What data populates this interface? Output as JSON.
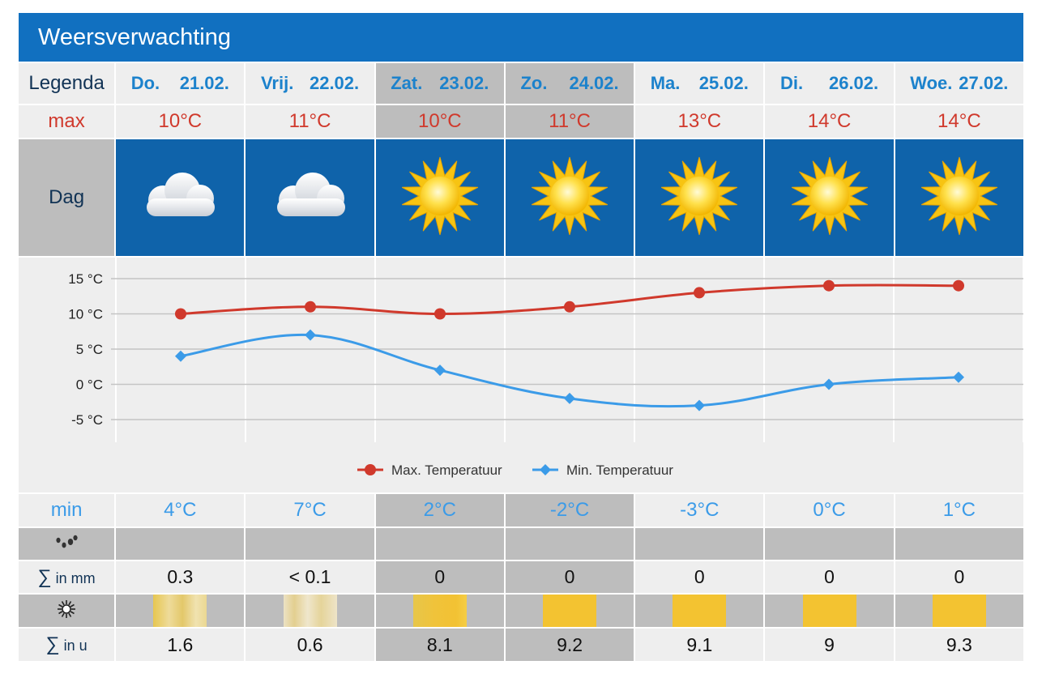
{
  "title": "Weersverwachting",
  "legend_labels": {
    "legenda": "Legenda",
    "max": "max",
    "dag": "Dag",
    "min": "min",
    "rain_sum_symbol": "∑",
    "rain_sum_unit": " in mm",
    "sun_sum_symbol": "∑",
    "sun_sum_unit": " in u"
  },
  "days": [
    {
      "name": "Do.",
      "date": "21.02.",
      "max": "10°C",
      "min": "4°C",
      "icon": "cloud-icon",
      "rain": "0.3",
      "sun": "1.6",
      "weekend": false,
      "sunbar": "sb1"
    },
    {
      "name": "Vrij.",
      "date": "22.02.",
      "max": "11°C",
      "min": "7°C",
      "icon": "cloud-icon",
      "rain": "< 0.1",
      "sun": "0.6",
      "weekend": false,
      "sunbar": "sb2"
    },
    {
      "name": "Zat.",
      "date": "23.02.",
      "max": "10°C",
      "min": "2°C",
      "icon": "sun-icon",
      "rain": "0",
      "sun": "8.1",
      "weekend": true,
      "sunbar": "sb3"
    },
    {
      "name": "Zo.",
      "date": "24.02.",
      "max": "11°C",
      "min": "-2°C",
      "icon": "sun-icon",
      "rain": "0",
      "sun": "9.2",
      "weekend": true,
      "sunbar": "sbf"
    },
    {
      "name": "Ma.",
      "date": "25.02.",
      "max": "13°C",
      "min": "-3°C",
      "icon": "sun-icon",
      "rain": "0",
      "sun": "9.1",
      "weekend": false,
      "sunbar": "sbf"
    },
    {
      "name": "Di.",
      "date": "26.02.",
      "max": "14°C",
      "min": "0°C",
      "icon": "sun-icon",
      "rain": "0",
      "sun": "9",
      "weekend": false,
      "sunbar": "sbf"
    },
    {
      "name": "Woe.",
      "date": "27.02.",
      "max": "14°C",
      "min": "1°C",
      "icon": "sun-icon",
      "rain": "0",
      "sun": "9.3",
      "weekend": false,
      "sunbar": "sbf"
    }
  ],
  "colors": {
    "header_blue": "#1170c0",
    "day_blue": "#1c82cc",
    "max_red": "#d0392c",
    "min_blue": "#3b9be8",
    "icon_bg": "#0f63aa",
    "weekend_gray": "#bdbdbd",
    "sun_yellow": "#f3c331"
  },
  "chart_data": {
    "type": "line",
    "categories": [
      "Do. 21.02.",
      "Vrij. 22.02.",
      "Zat. 23.02.",
      "Zo. 24.02.",
      "Ma. 25.02.",
      "Di. 26.02.",
      "Woe. 27.02."
    ],
    "series": [
      {
        "name": "Max. Temperatuur",
        "values": [
          10,
          11,
          10,
          11,
          13,
          14,
          14
        ],
        "color": "#d0392c",
        "marker": "circle"
      },
      {
        "name": "Min. Temperatuur",
        "values": [
          4,
          7,
          2,
          -2,
          -3,
          0,
          1
        ],
        "color": "#3b9be8",
        "marker": "diamond"
      }
    ],
    "yticks": [
      "15 °C",
      "10 °C",
      "5 °C",
      "0 °C",
      "-5 °C"
    ],
    "ytick_values": [
      15,
      10,
      5,
      0,
      -5
    ],
    "ylim": [
      -5,
      15
    ],
    "grid": true,
    "legend_position": "bottom"
  }
}
